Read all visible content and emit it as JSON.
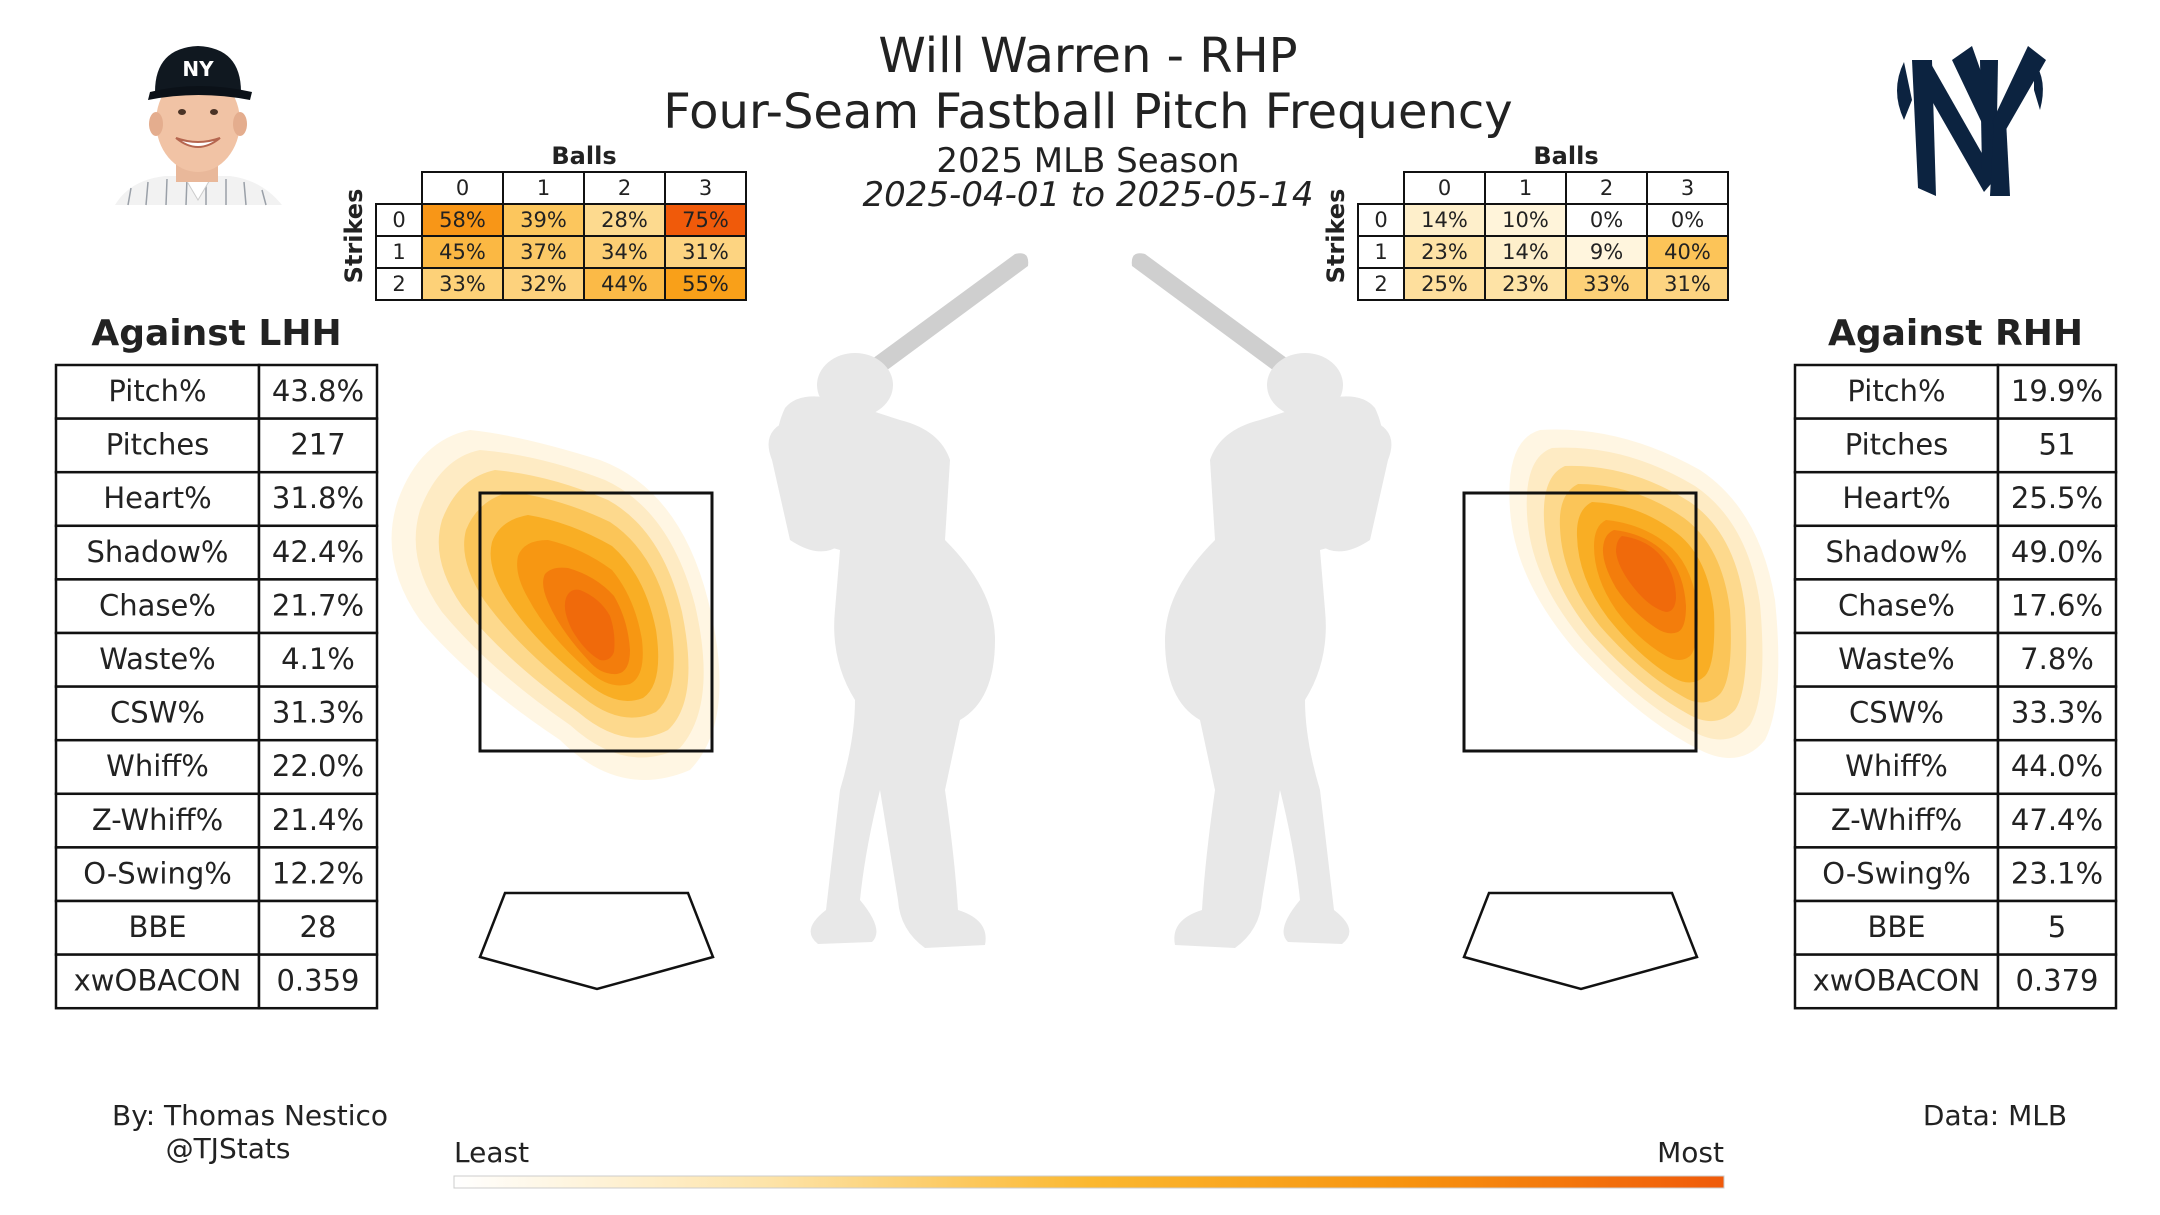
{
  "header": {
    "title": "Will Warren - RHP",
    "subtitle": "Four-Seam Fastball Pitch Frequency",
    "season": "2025 MLB Season",
    "date_range": "2025-04-01 to 2025-05-14"
  },
  "team_logo": {
    "icon": "yankees-ny-logo",
    "color": "#0c2340"
  },
  "player_photo": {
    "icon": "player-headshot"
  },
  "credit": {
    "author": "By: Thomas Nestico",
    "handle": "@TJStats",
    "source": "Data: MLB"
  },
  "colorbar": {
    "least_label": "Least",
    "most_label": "Most",
    "colors": [
      "#ffffff",
      "#fde3a7",
      "#fbb830",
      "#f7930f",
      "#f05a0a"
    ]
  },
  "colors": {
    "heat_low": "#fff3d6",
    "heat_mid": "#f9a515",
    "heat_high": "#f26a0c",
    "silhouette": "#e8e8e8"
  },
  "chart_data": [
    {
      "type": "table",
      "name": "count-frequency-lhh",
      "columns_label": "Balls",
      "rows_label": "Strikes",
      "balls": [
        "0",
        "1",
        "2",
        "3"
      ],
      "strikes": [
        "0",
        "1",
        "2"
      ],
      "values": [
        [
          58,
          39,
          28,
          75
        ],
        [
          45,
          37,
          34,
          31
        ],
        [
          33,
          32,
          44,
          55
        ]
      ],
      "value_suffix": "%"
    },
    {
      "type": "table",
      "name": "count-frequency-rhh",
      "columns_label": "Balls",
      "rows_label": "Strikes",
      "balls": [
        "0",
        "1",
        "2",
        "3"
      ],
      "strikes": [
        "0",
        "1",
        "2"
      ],
      "values": [
        [
          14,
          10,
          0,
          0
        ],
        [
          23,
          14,
          9,
          40
        ],
        [
          25,
          23,
          33,
          31
        ]
      ],
      "value_suffix": "%"
    },
    {
      "type": "table",
      "name": "stats-lhh",
      "title": "Against LHH",
      "rows": [
        [
          "Pitch%",
          "43.8%"
        ],
        [
          "Pitches",
          "217"
        ],
        [
          "Heart%",
          "31.8%"
        ],
        [
          "Shadow%",
          "42.4%"
        ],
        [
          "Chase%",
          "21.7%"
        ],
        [
          "Waste%",
          "4.1%"
        ],
        [
          "CSW%",
          "31.3%"
        ],
        [
          "Whiff%",
          "22.0%"
        ],
        [
          "Z-Whiff%",
          "21.4%"
        ],
        [
          "O-Swing%",
          "12.2%"
        ],
        [
          "BBE",
          "28"
        ],
        [
          "xwOBACON",
          "0.359"
        ]
      ]
    },
    {
      "type": "table",
      "name": "stats-rhh",
      "title": "Against RHH",
      "rows": [
        [
          "Pitch%",
          "19.9%"
        ],
        [
          "Pitches",
          "51"
        ],
        [
          "Heart%",
          "25.5%"
        ],
        [
          "Shadow%",
          "49.0%"
        ],
        [
          "Chase%",
          "17.6%"
        ],
        [
          "Waste%",
          "7.8%"
        ],
        [
          "CSW%",
          "33.3%"
        ],
        [
          "Whiff%",
          "44.0%"
        ],
        [
          "Z-Whiff%",
          "47.4%"
        ],
        [
          "O-Swing%",
          "23.1%"
        ],
        [
          "BBE",
          "5"
        ],
        [
          "xwOBACON",
          "0.379"
        ]
      ]
    },
    {
      "type": "heatmap",
      "name": "location-density-lhh",
      "value_range": [
        "Least",
        "Most"
      ]
    },
    {
      "type": "heatmap",
      "name": "location-density-rhh",
      "value_range": [
        "Least",
        "Most"
      ]
    }
  ]
}
